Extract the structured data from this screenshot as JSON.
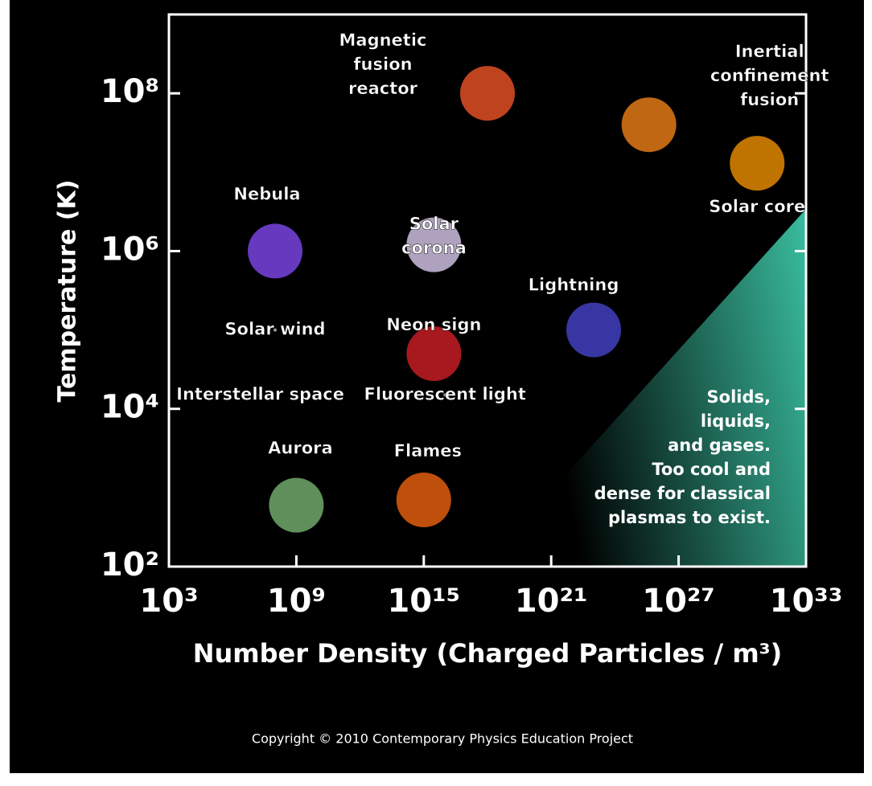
{
  "chart_data": {
    "type": "scatter",
    "y_label": "Temperature (K)",
    "x_label": "Number Density (Charged Particles / m³)",
    "log_x": true,
    "log_y": true,
    "xlim": [
      1000.0,
      1e+33
    ],
    "ylim": [
      100.0,
      1000000000.0
    ],
    "xticks": [
      {
        "value": 1000.0,
        "label": "10³"
      },
      {
        "value": 1000000000.0,
        "label": "10⁹"
      },
      {
        "value": 1000000000000000.0,
        "label": "10¹⁵"
      },
      {
        "value": 1e+21,
        "label": "10²¹"
      },
      {
        "value": 1e+27,
        "label": "10²⁷"
      },
      {
        "value": 1e+33,
        "label": "10³³"
      }
    ],
    "yticks": [
      {
        "value": 100.0,
        "label": "10²"
      },
      {
        "value": 10000.0,
        "label": "10⁴"
      },
      {
        "value": 1000000.0,
        "label": "10⁶"
      },
      {
        "value": 100000000.0,
        "label": "10⁸"
      }
    ],
    "points": [
      {
        "name": [
          "Magnetic",
          "fusion",
          "reactor"
        ],
        "x": 1e+18,
        "y": 100000000.0,
        "color": "#ff5a2a"
      },
      {
        "name": [
          "Inertial",
          "confinement",
          "fusion"
        ],
        "x": 4e+25,
        "y": 40000000.0,
        "color": "#ff8a1a"
      },
      {
        "name": [
          "Solar core"
        ],
        "x": 5e+30,
        "y": 13000000.0,
        "color": "#ff9a00"
      },
      {
        "name": [
          "Nebula"
        ],
        "x": 100000000.0,
        "y": 1000000.0,
        "color": "#8a4cff"
      },
      {
        "name": [
          "Solar",
          "corona"
        ],
        "x": 3000000000000000.0,
        "y": 1200000.0,
        "color": "#e8d8ff"
      },
      {
        "name": [
          "Lightning"
        ],
        "x": 1e+23,
        "y": 100000.0,
        "color": "#4a48d8"
      },
      {
        "name": [
          "Solar wind"
        ],
        "x": 100000000.0,
        "y": 100000.0,
        "color": "#ffffff"
      },
      {
        "name": [
          "Neon sign"
        ],
        "x": 3000000000000000.0,
        "y": 50000.0,
        "color": "#e0202a"
      },
      {
        "name": [
          "Interstellar space"
        ],
        "x": 20000000.0,
        "y": 15000.0,
        "color": "#ffffff"
      },
      {
        "name": [
          "Fluorescent light"
        ],
        "x": 1e+16,
        "y": 15000.0,
        "color": "#ffffff"
      },
      {
        "name": [
          "Aurora"
        ],
        "x": 1000000000.0,
        "y": 600.0,
        "color": "#7fbf7a"
      },
      {
        "name": [
          "Flames"
        ],
        "x": 1000000000000000.0,
        "y": 700.0,
        "color": "#ff6a10"
      }
    ],
    "annotation": [
      "Solids,",
      "liquids,",
      "and gases.",
      "Too cool and",
      "dense for classical",
      "plasmas to exist."
    ],
    "copyright": "Copyright © 2010 Contemporary Physics Education Project"
  }
}
